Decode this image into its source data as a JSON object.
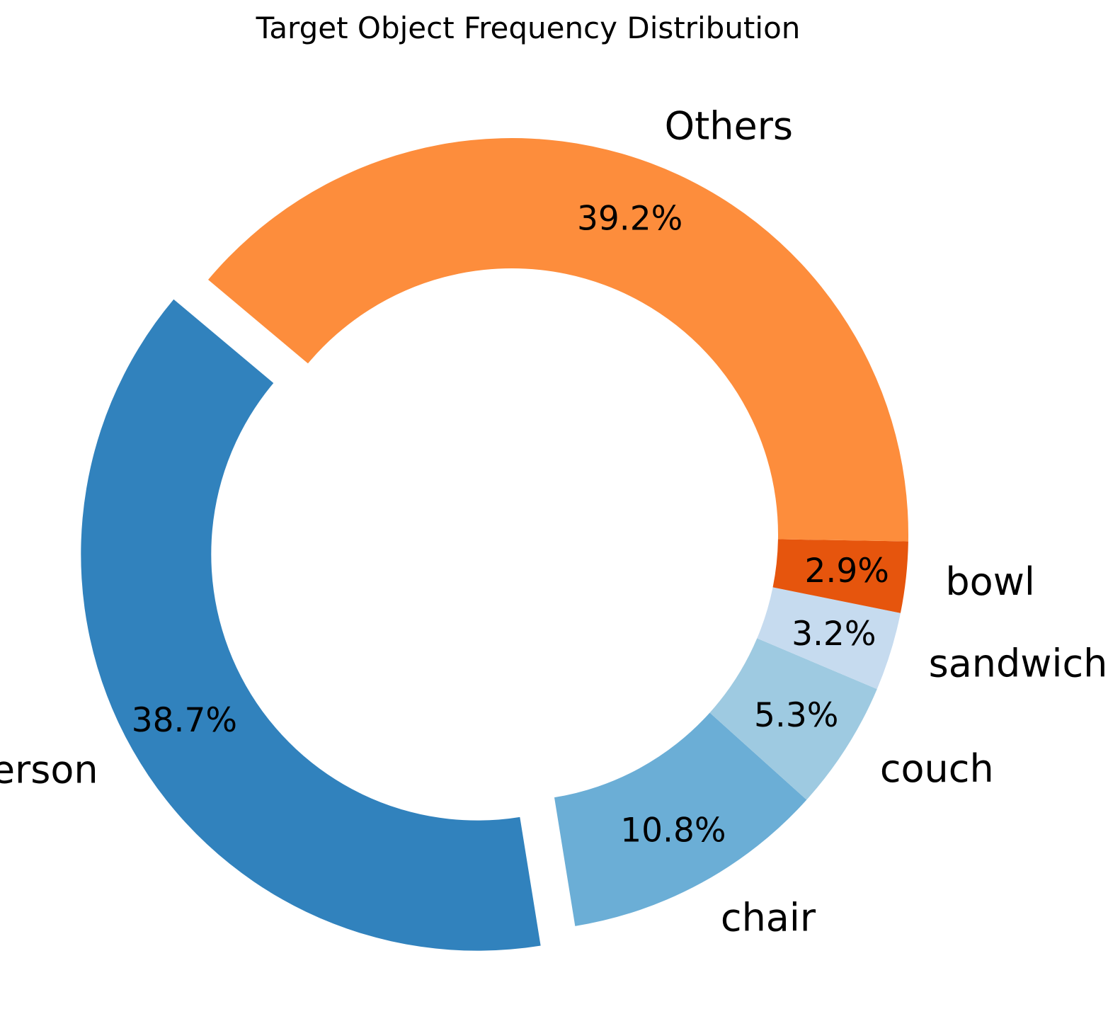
{
  "chart_data": {
    "type": "pie",
    "style": "donut",
    "title": "Target Object Frequency Distribution",
    "start_angle_deg": 140,
    "direction": "counterclockwise",
    "slices": [
      {
        "label": "person",
        "percent": 38.7,
        "percent_label": "38.7%",
        "color": "#3182bd",
        "exploded": true
      },
      {
        "label": "chair",
        "percent": 10.8,
        "percent_label": "10.8%",
        "color": "#6baed6",
        "exploded": false
      },
      {
        "label": "couch",
        "percent": 5.3,
        "percent_label": "5.3%",
        "color": "#9ecae1",
        "exploded": false
      },
      {
        "label": "sandwich",
        "percent": 3.2,
        "percent_label": "3.2%",
        "color": "#c6dbef",
        "exploded": false
      },
      {
        "label": "bowl",
        "percent": 2.9,
        "percent_label": "2.9%",
        "color": "#e6550d",
        "exploded": false
      },
      {
        "label": "Others",
        "percent": 39.2,
        "percent_label": "39.2%",
        "color": "#fd8d3c",
        "exploded": false
      }
    ]
  }
}
